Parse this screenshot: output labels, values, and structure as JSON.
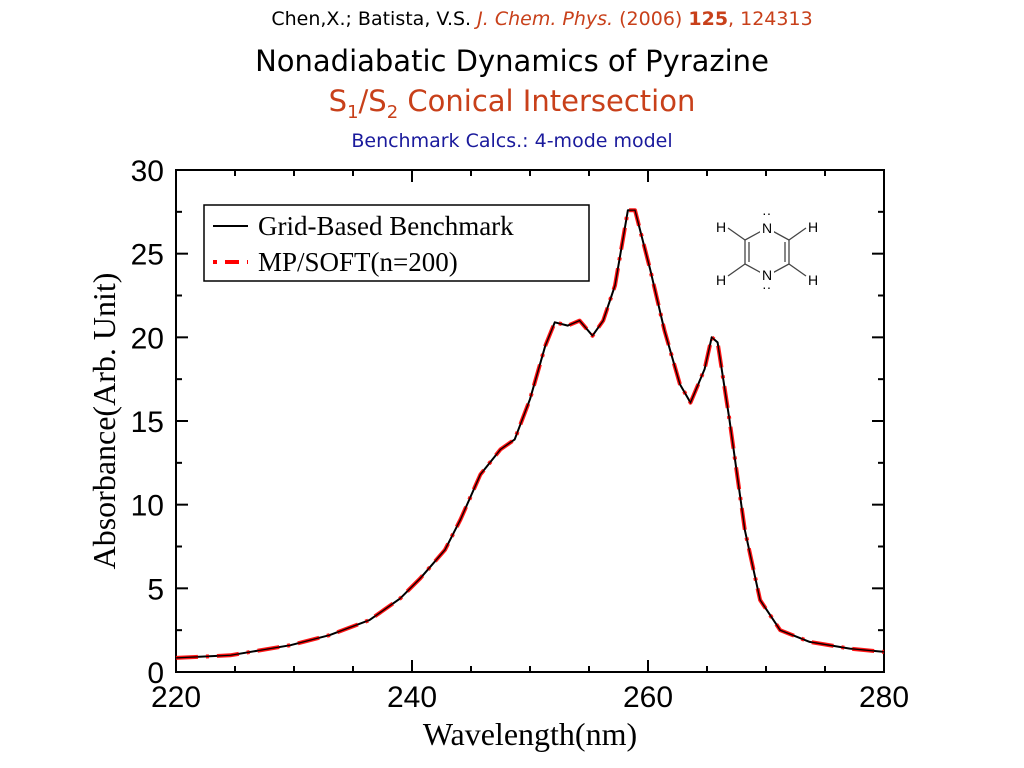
{
  "header": {
    "authors": "Chen,X.; Batista, V.S.",
    "journal": "J. Chem. Phys.",
    "year": "(2006)",
    "volume": "125",
    "article": ", 124313",
    "title": "Nonadiabatic Dynamics of Pyrazine",
    "subtitle_s1": "S",
    "subtitle_sub1": "1",
    "subtitle_slash": "/S",
    "subtitle_sub2": "2",
    "subtitle_rest": " Conical Intersection",
    "benchmark": "Benchmark Calcs.: 4-mode model"
  },
  "molecule": {
    "atoms": [
      "H",
      "N",
      "H",
      "H",
      "N",
      "H"
    ]
  },
  "chart_data": {
    "type": "line",
    "xlabel": "Wavelength(nm)",
    "ylabel": "Absorbance(Arb. Unit)",
    "xlim": [
      220,
      280
    ],
    "ylim": [
      0,
      30
    ],
    "xticks": [
      220,
      240,
      260,
      280
    ],
    "yticks": [
      0,
      5,
      10,
      15,
      20,
      25,
      30
    ],
    "legend_position": "top-left",
    "colors": {
      "benchmark": "#000000",
      "soft": "#ff0000"
    },
    "series": [
      {
        "name": "Grid-Based Benchmark",
        "style": "solid",
        "x": [
          220,
          224.6,
          229.7,
          233,
          236.4,
          239,
          240.7,
          242.8,
          244.1,
          245.8,
          247.5,
          248.7,
          250,
          251.3,
          252.1,
          253.2,
          254.2,
          255.3,
          256.2,
          257.2,
          258.3,
          258.9,
          260.2,
          261.4,
          262.7,
          263.6,
          264.8,
          265.4,
          265.9,
          266.9,
          268.2,
          269.5,
          271.2,
          273.7,
          277.1,
          280
        ],
        "y": [
          0.84,
          1.0,
          1.6,
          2.2,
          3.1,
          4.4,
          5.6,
          7.3,
          9.1,
          11.8,
          13.3,
          13.9,
          16.3,
          19.5,
          20.9,
          20.7,
          21.0,
          20.1,
          21.0,
          23.1,
          27.6,
          27.6,
          24,
          20.4,
          17.2,
          16.1,
          18.1,
          20.0,
          19.7,
          15.1,
          8.5,
          4.3,
          2.5,
          1.8,
          1.4,
          1.2
        ]
      },
      {
        "name": "MP/SOFT(n=200)",
        "style": "dash-dot",
        "x": [
          220,
          224.6,
          229.7,
          233,
          236.4,
          239,
          240.7,
          242.8,
          244.1,
          245.8,
          247.5,
          248.7,
          250,
          251.3,
          252.1,
          253.2,
          254.2,
          255.3,
          256.2,
          257.2,
          258.3,
          258.9,
          260.2,
          261.4,
          262.7,
          263.6,
          264.8,
          265.4,
          265.9,
          266.9,
          268.2,
          269.5,
          271.2,
          273.7,
          277.1,
          280
        ],
        "y": [
          0.84,
          1.0,
          1.6,
          2.2,
          3.1,
          4.4,
          5.6,
          7.3,
          9.1,
          11.8,
          13.3,
          13.9,
          16.3,
          19.5,
          20.9,
          20.7,
          21.0,
          20.1,
          21.0,
          23.1,
          27.6,
          27.6,
          24,
          20.4,
          17.2,
          16.1,
          18.1,
          20.0,
          19.7,
          15.1,
          8.5,
          4.3,
          2.5,
          1.8,
          1.4,
          1.2
        ]
      }
    ]
  }
}
